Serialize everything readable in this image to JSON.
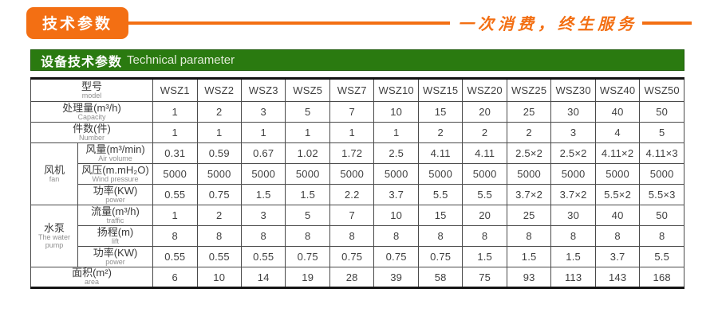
{
  "header": {
    "badge": "技术参数",
    "slogan": "一次消费，终生服务"
  },
  "title_bar": {
    "zh": "设备技术参数",
    "en": "Technical parameter"
  },
  "colors": {
    "accent_orange": "#f36f13",
    "title_green": "#2a7a10",
    "table_border_dark": "#141414",
    "cell_text": "#3f3f3f"
  },
  "table": {
    "model_header": {
      "zh": "型号",
      "en": "model"
    },
    "models": [
      "WSZ1",
      "WSZ2",
      "WSZ3",
      "WSZ5",
      "WSZ7",
      "WSZ10",
      "WSZ15",
      "WSZ20",
      "WSZ25",
      "WSZ30",
      "WSZ40",
      "WSZ50"
    ],
    "groups": [
      {
        "zh": "风机",
        "en": "fan"
      },
      {
        "zh": "水泵",
        "en": "The water pump"
      }
    ],
    "rows": [
      {
        "kind": "full",
        "zh": "处理量(m³/h)",
        "en": "Capacity",
        "values": [
          "1",
          "2",
          "3",
          "5",
          "7",
          "10",
          "15",
          "20",
          "25",
          "30",
          "40",
          "50"
        ]
      },
      {
        "kind": "full",
        "zh": "件数(件)",
        "en": "Number",
        "values": [
          "1",
          "1",
          "1",
          "1",
          "1",
          "1",
          "2",
          "2",
          "2",
          "3",
          "4",
          "5"
        ]
      },
      {
        "kind": "sub",
        "group": 0,
        "group_start": true,
        "zh": "风量(m³/min)",
        "en": "Air volume",
        "values": [
          "0.31",
          "0.59",
          "0.67",
          "1.02",
          "1.72",
          "2.5",
          "4.11",
          "4.11",
          "2.5×2",
          "2.5×2",
          "4.11×2",
          "4.11×3"
        ]
      },
      {
        "kind": "sub",
        "group": 0,
        "zh": "风压(m.mH₂O)",
        "en": "Wind pressure",
        "values": [
          "5000",
          "5000",
          "5000",
          "5000",
          "5000",
          "5000",
          "5000",
          "5000",
          "5000",
          "5000",
          "5000",
          "5000"
        ]
      },
      {
        "kind": "sub",
        "group": 0,
        "zh": "功率(KW)",
        "en": "power",
        "values": [
          "0.55",
          "0.75",
          "1.5",
          "1.5",
          "2.2",
          "3.7",
          "5.5",
          "5.5",
          "3.7×2",
          "3.7×2",
          "5.5×2",
          "5.5×3"
        ]
      },
      {
        "kind": "sub",
        "group": 1,
        "group_start": true,
        "zh": "流量(m³/h)",
        "en": "traffic",
        "values": [
          "1",
          "2",
          "3",
          "5",
          "7",
          "10",
          "15",
          "20",
          "25",
          "30",
          "40",
          "50"
        ]
      },
      {
        "kind": "sub",
        "group": 1,
        "zh": "扬程(m)",
        "en": "lift",
        "values": [
          "8",
          "8",
          "8",
          "8",
          "8",
          "8",
          "8",
          "8",
          "8",
          "8",
          "8",
          "8"
        ]
      },
      {
        "kind": "sub",
        "group": 1,
        "zh": "功率(KW)",
        "en": "power",
        "values": [
          "0.55",
          "0.55",
          "0.55",
          "0.75",
          "0.75",
          "0.75",
          "0.75",
          "1.5",
          "1.5",
          "1.5",
          "3.7",
          "5.5"
        ]
      },
      {
        "kind": "full",
        "zh": "面积(m²)",
        "en": "area",
        "values": [
          "6",
          "10",
          "14",
          "19",
          "28",
          "39",
          "58",
          "75",
          "93",
          "113",
          "143",
          "168"
        ]
      }
    ]
  }
}
